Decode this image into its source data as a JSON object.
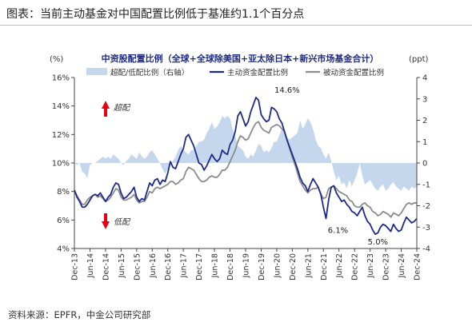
{
  "figure_title": "图表：当前主动基金对中国配置比例低于基准约1.1个百分点",
  "source": "资料来源：EPFR，中金公司研究部",
  "chart_data": {
    "type": "line",
    "title": "中资股配置比例（全球+全球除美国+亚太除日本+新兴市场基金合计）",
    "left_axis_unit": "(%)",
    "right_axis_unit": "(ppt)",
    "ylim_left": [
      4,
      16
    ],
    "ylim_right": [
      -4,
      4
    ],
    "left_ticks": [
      "4%",
      "6%",
      "8%",
      "10%",
      "12%",
      "14%",
      "16%"
    ],
    "right_ticks": [
      "-4",
      "-3",
      "-2",
      "-1",
      "0",
      "1",
      "2",
      "3",
      "4"
    ],
    "x_ticks": [
      "Dec-13",
      "Jun-14",
      "Dec-14",
      "Jun-15",
      "Dec-15",
      "Jun-16",
      "Dec-16",
      "Jun-17",
      "Dec-17",
      "Jun-18",
      "Dec-18",
      "Jun-19",
      "Dec-19",
      "Jun-20",
      "Dec-20",
      "Jun-21",
      "Dec-21",
      "Jun-22",
      "Dec-22",
      "Jun-23",
      "Dec-23",
      "Jun-24",
      "Dec-24"
    ],
    "x_start": "2013-12",
    "x_end": "2024-12",
    "series": [
      {
        "name": "超配/低配比例（右轴）",
        "kind": "area",
        "axis": "right",
        "color": "#c5d7ec",
        "values": [
          0,
          -0.1,
          0,
          -0.4,
          -0.5,
          -0.7,
          -0.1,
          0,
          0,
          0.1,
          0.2,
          0.3,
          0.2,
          0.3,
          0.2,
          0.4,
          0.3,
          0.2,
          0,
          -0.1,
          0.1,
          0.2,
          0.4,
          0.3,
          0.2,
          0.5,
          0.3,
          0.2,
          0.3,
          0.5,
          0.6,
          0.4,
          0.2,
          0,
          -0.3,
          -0.5,
          -0.3,
          0,
          0.1,
          0.3,
          0.6,
          0.8,
          0.6,
          0.5,
          0.4,
          0.6,
          0.6,
          0.8,
          1,
          1,
          1.1,
          1.4,
          1.6,
          1.9,
          1.6,
          1.7,
          1.9,
          2.2,
          2.1,
          2.2,
          2.1,
          1.6,
          1.3,
          0.8,
          0.7,
          0.6,
          0.3,
          0.2,
          0.4,
          0.3,
          0.6,
          0.9,
          0.8,
          0.5,
          0.6,
          0.5,
          0.7,
          1,
          1,
          1.3,
          1.6,
          1.4,
          1.2,
          1.1,
          1.2,
          1.3,
          1.4,
          2,
          1.6,
          1.8,
          2.1,
          1.9,
          1.6,
          1.1,
          0.8,
          0.7,
          0.4,
          0.2,
          0.5,
          0.1,
          -0.4,
          -0.8,
          -0.6,
          -1,
          -0.9,
          -1.2,
          -0.8,
          -1.1,
          -0.8,
          -0.5,
          0,
          -0.6,
          -1,
          -0.9,
          -0.8,
          -1,
          -1.2,
          -1.3,
          -1.1,
          -1,
          -1.3,
          -1.2,
          -1,
          -0.9,
          -1.1,
          -1.2,
          -1.3,
          -1.1,
          -1.2,
          -1.3,
          -1.1,
          -1.2,
          -1.1
        ]
      },
      {
        "name": "主动资金配置比例",
        "kind": "line",
        "axis": "left",
        "color": "#1c2a8a",
        "values": [
          8.1,
          7.6,
          7.3,
          6.9,
          6.9,
          7.1,
          7.4,
          7.7,
          7.8,
          7.7,
          7.9,
          7.6,
          7.3,
          7.6,
          7.8,
          8.3,
          8.6,
          8.5,
          7.9,
          7.5,
          7.6,
          7.8,
          8.0,
          8.3,
          7.6,
          7.3,
          7.5,
          7.4,
          8.0,
          8.6,
          8.4,
          8.8,
          8.9,
          8.5,
          8.8,
          8.7,
          9.3,
          10.1,
          9.7,
          9.6,
          10.1,
          10.6,
          11.0,
          11.8,
          12.0,
          11.6,
          11.2,
          10.6,
          10.0,
          9.9,
          9.5,
          9.8,
          10.2,
          10.6,
          10.3,
          10.1,
          10.3,
          10.9,
          10.7,
          10.6,
          11.3,
          11.6,
          12.2,
          13.3,
          13.6,
          13.1,
          12.6,
          12.9,
          13.6,
          14.1,
          14.6,
          14.4,
          13.4,
          13.1,
          12.9,
          13.0,
          13.9,
          13.8,
          13.6,
          13.1,
          12.8,
          12.2,
          11.6,
          11.1,
          10.6,
          10.1,
          9.6,
          9.0,
          8.6,
          8.4,
          8.0,
          8.5,
          8.9,
          8.6,
          8.3,
          7.8,
          6.9,
          6.1,
          7.4,
          8.3,
          8.4,
          7.9,
          7.6,
          7.3,
          7.4,
          7.1,
          6.9,
          6.6,
          6.5,
          6.3,
          6.6,
          6.9,
          6.3,
          5.9,
          5.7,
          5.3,
          5.0,
          5.1,
          5.5,
          5.7,
          5.6,
          5.4,
          5.2,
          5.7,
          5.4,
          5.2,
          5.3,
          5.8,
          6.2,
          6.0,
          5.8,
          5.9,
          6.1
        ]
      },
      {
        "name": "被动资金配置比例",
        "kind": "line",
        "axis": "left",
        "color": "#8c8c8c",
        "values": [
          8.1,
          7.7,
          7.4,
          7.1,
          7.1,
          7.4,
          7.6,
          7.7,
          7.8,
          7.6,
          7.7,
          7.5,
          7.3,
          7.4,
          7.6,
          7.9,
          8.2,
          8.1,
          7.6,
          7.4,
          7.4,
          7.5,
          7.6,
          7.8,
          7.4,
          7.2,
          7.3,
          7.3,
          7.6,
          8.0,
          7.9,
          8.2,
          8.3,
          8.2,
          8.3,
          8.4,
          8.5,
          8.7,
          8.7,
          8.5,
          8.6,
          8.8,
          8.9,
          9.4,
          9.7,
          9.6,
          9.5,
          9.2,
          8.9,
          8.7,
          8.7,
          8.8,
          9.0,
          9.1,
          9.0,
          9.0,
          9.2,
          9.5,
          9.5,
          9.7,
          10.1,
          10.5,
          10.9,
          11.5,
          11.9,
          11.8,
          11.6,
          11.7,
          12.1,
          12.5,
          12.8,
          12.9,
          12.5,
          12.3,
          12.2,
          12.1,
          12.5,
          12.6,
          12.7,
          12.6,
          12.4,
          12.2,
          11.6,
          11.0,
          10.4,
          9.9,
          9.3,
          8.7,
          8.4,
          8.1,
          7.9,
          8.1,
          8.2,
          8.2,
          8.3,
          7.8,
          7.5,
          7.6,
          8.2,
          8.3,
          8.4,
          8.2,
          8.0,
          7.9,
          7.8,
          7.7,
          7.4,
          7.3,
          7.0,
          6.9,
          6.9,
          7.1,
          7.2,
          7.0,
          6.9,
          6.6,
          6.5,
          6.3,
          6.4,
          6.6,
          6.5,
          6.4,
          6.2,
          6.5,
          6.4,
          6.3,
          6.5,
          6.8,
          7.1,
          7.2,
          7.1,
          7.2,
          7.2
        ]
      }
    ],
    "annotations": [
      {
        "text": "14.6%",
        "x": "2020-10",
        "y": 14.6
      },
      {
        "text": "6.1%",
        "x": "2022-05",
        "y": 6.1
      },
      {
        "text": "5.0%",
        "x": "2023-09",
        "y": 5.0
      },
      {
        "text": "超配",
        "kind": "up-arrow",
        "color": "#e60012"
      },
      {
        "text": "低配",
        "kind": "down-arrow",
        "color": "#e60012"
      }
    ],
    "grid": false,
    "legend_position": "top"
  }
}
